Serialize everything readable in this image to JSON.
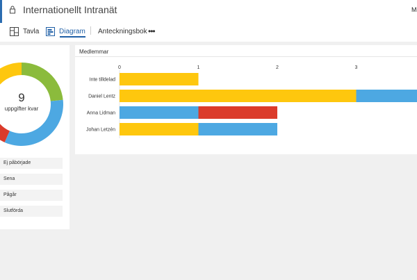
{
  "header": {
    "title": "Internationellt Intranät",
    "user_initial": "M"
  },
  "tabs": {
    "board": "Tavla",
    "chart": "Diagram",
    "notes": "Anteckningsbok",
    "more": "•••"
  },
  "summary": {
    "count": "9",
    "caption": "uppgifter kvar"
  },
  "status_filters": [
    "Ej påbörjade",
    "Sena",
    "Pågår",
    "Slutförda"
  ],
  "colors": {
    "not_started": "#fec70e",
    "late": "#db3b2b",
    "in_progress": "#4da8e2",
    "completed": "#8bbb3c"
  },
  "chart_data": {
    "type": "bar",
    "title": "Medlemmar",
    "orientation": "horizontal-stacked",
    "categories": [
      "Inte tilldelad",
      "Daniel Lentz",
      "Anna Lidman",
      "Johan Letzén"
    ],
    "x_ticks": [
      "0",
      "1",
      "2",
      "3"
    ],
    "series": [
      {
        "color": "#fec70e",
        "values": [
          1,
          3,
          0,
          1
        ]
      },
      {
        "color": "#4da8e2",
        "values": [
          0,
          1,
          1,
          1
        ]
      },
      {
        "color": "#db3b2b",
        "values": [
          0,
          0,
          1,
          0
        ]
      }
    ]
  },
  "donut_data": {
    "segments": [
      {
        "color": "#8bbb3c",
        "value": 2.1
      },
      {
        "color": "#4da8e2",
        "value": 3.0
      },
      {
        "color": "#db3b2b",
        "value": 0.7
      },
      {
        "color": "#fec70e",
        "value": 3.2
      }
    ]
  }
}
